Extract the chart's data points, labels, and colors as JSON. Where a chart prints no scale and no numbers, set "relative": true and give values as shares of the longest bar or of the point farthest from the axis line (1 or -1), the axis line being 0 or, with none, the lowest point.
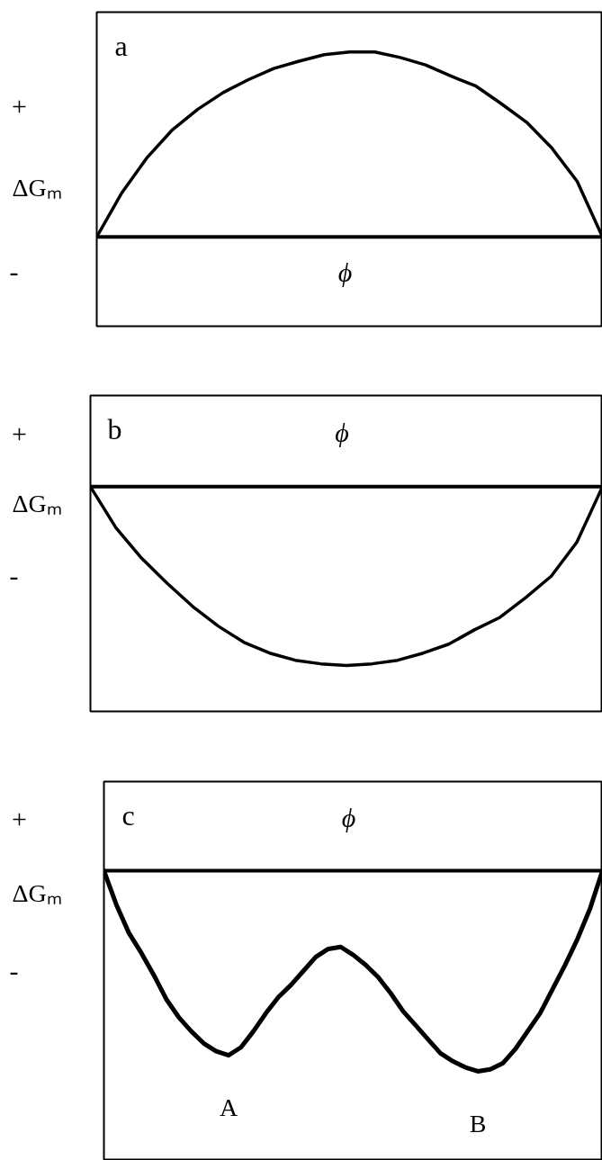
{
  "chart_data": [
    {
      "type": "line",
      "relative": true,
      "title": "a",
      "xlabel": "ϕ",
      "ylabel": "ΔGₘ",
      "annotations": [
        "+",
        "-"
      ],
      "categories": [
        null,
        null,
        null,
        null,
        null,
        null,
        null,
        null,
        null,
        null,
        null,
        null,
        null,
        null,
        null,
        null,
        null,
        null,
        null,
        null,
        null
      ],
      "series": [
        {
          "color": "#000000",
          "values": [
            0,
            0.24,
            0.43,
            0.58,
            0.69,
            0.78,
            0.85,
            0.91,
            0.95,
            0.985,
            1.0,
            1.0,
            0.97,
            0.93,
            0.87,
            0.815,
            0.72,
            0.62,
            0.48,
            0.3,
            0
          ]
        }
      ]
    },
    {
      "type": "line",
      "relative": true,
      "title": "b",
      "xlabel": "ϕ",
      "ylabel": "ΔGₘ",
      "annotations": [
        "+",
        "-"
      ],
      "categories": [
        null,
        null,
        null,
        null,
        null,
        null,
        null,
        null,
        null,
        null,
        null,
        null,
        null,
        null,
        null,
        null,
        null,
        null,
        null,
        null,
        null
      ],
      "series": [
        {
          "color": "#000000",
          "values": [
            0,
            -0.23,
            -0.4,
            -0.54,
            -0.67,
            -0.78,
            -0.87,
            -0.93,
            -0.97,
            -0.99,
            -1.0,
            -0.99,
            -0.97,
            -0.93,
            -0.88,
            -0.8,
            -0.73,
            -0.62,
            -0.5,
            -0.31,
            0
          ]
        }
      ]
    },
    {
      "type": "line",
      "relative": true,
      "title": "c",
      "xlabel": "ϕ",
      "ylabel": "ΔGₘ",
      "annotations": [
        "+",
        "-",
        {
          "text": "A",
          "y": -0.92
        },
        {
          "text": "B",
          "y": -1.0
        }
      ],
      "categories": [
        null,
        null,
        null,
        null,
        null,
        null,
        null,
        null,
        null,
        null,
        null,
        null,
        null,
        null,
        null,
        null,
        null,
        null,
        null,
        null,
        null,
        null,
        null,
        null,
        null,
        null,
        null,
        null,
        null,
        null,
        null,
        null,
        null,
        null,
        null,
        null,
        null,
        null,
        null,
        null,
        null
      ],
      "series": [
        {
          "color": "#000000",
          "values": [
            0,
            -0.17,
            -0.31,
            -0.41,
            -0.52,
            -0.64,
            -0.73,
            -0.8,
            -0.86,
            -0.9,
            -0.92,
            -0.88,
            -0.8,
            -0.71,
            -0.63,
            -0.57,
            -0.5,
            -0.43,
            -0.39,
            -0.38,
            -0.42,
            -0.47,
            -0.53,
            -0.61,
            -0.7,
            -0.77,
            -0.84,
            -0.91,
            -0.95,
            -0.98,
            -1.0,
            -0.99,
            -0.96,
            -0.89,
            -0.8,
            -0.71,
            -0.59,
            -0.47,
            -0.34,
            -0.19,
            0
          ]
        }
      ]
    }
  ]
}
